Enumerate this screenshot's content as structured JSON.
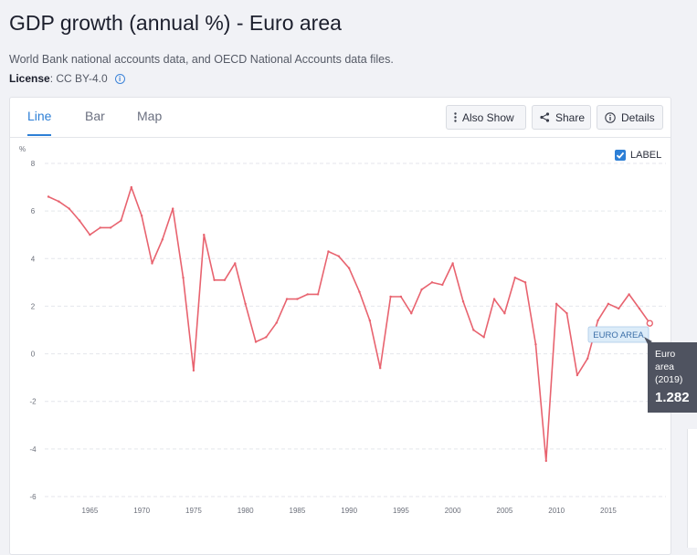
{
  "header": {
    "title": "GDP growth (annual %) - Euro area",
    "subtitle": "World Bank national accounts data, and OECD National Accounts data files.",
    "license_label": "License",
    "license_value": " : CC BY-4.0"
  },
  "tabs": [
    {
      "label": "Line",
      "active": true
    },
    {
      "label": "Bar",
      "active": false
    },
    {
      "label": "Map",
      "active": false
    }
  ],
  "toolbar": {
    "also_show": "Also Show",
    "share": "Share",
    "details": "Details",
    "label_toggle": "LABEL",
    "label_checked": true
  },
  "colors": {
    "line": "#e8636f",
    "accent": "#2d7fd6",
    "series_label_bg": "#dcecf9",
    "tooltip_bg": "#4f5360"
  },
  "chart_data": {
    "type": "line",
    "ylabel": "%",
    "ylim": [
      -6,
      8
    ],
    "yticks": [
      -6,
      -4,
      -2,
      0,
      2,
      4,
      6,
      8
    ],
    "xlim": [
      1960,
      2019
    ],
    "xticks": [
      1965,
      1970,
      1975,
      1980,
      1985,
      1990,
      1995,
      2000,
      2005,
      2010,
      2015
    ],
    "grid": "horizontal dashed",
    "series": [
      {
        "name": "EURO AREA",
        "x": [
          1961,
          1962,
          1963,
          1964,
          1965,
          1966,
          1967,
          1968,
          1969,
          1970,
          1971,
          1972,
          1973,
          1974,
          1975,
          1976,
          1977,
          1978,
          1979,
          1980,
          1981,
          1982,
          1983,
          1984,
          1985,
          1986,
          1987,
          1988,
          1989,
          1990,
          1991,
          1992,
          1993,
          1994,
          1995,
          1996,
          1997,
          1998,
          1999,
          2000,
          2001,
          2002,
          2003,
          2004,
          2005,
          2006,
          2007,
          2008,
          2009,
          2010,
          2011,
          2012,
          2013,
          2014,
          2015,
          2016,
          2017,
          2018,
          2019
        ],
        "values": [
          6.6,
          6.4,
          6.1,
          5.6,
          5.0,
          5.3,
          5.3,
          5.6,
          7.0,
          5.8,
          3.8,
          4.8,
          6.1,
          3.2,
          -0.7,
          5.0,
          3.1,
          3.1,
          3.8,
          2.1,
          0.5,
          0.7,
          1.3,
          2.3,
          2.3,
          2.5,
          2.5,
          4.3,
          4.1,
          3.6,
          2.6,
          1.4,
          -0.6,
          2.4,
          2.4,
          1.7,
          2.7,
          3.0,
          2.9,
          3.8,
          2.2,
          1.0,
          0.7,
          2.3,
          1.7,
          3.2,
          3.0,
          0.4,
          -4.5,
          2.1,
          1.7,
          -0.9,
          -0.2,
          1.4,
          2.1,
          1.9,
          2.5,
          1.9,
          1.282
        ]
      }
    ],
    "series_label": "EURO AREA",
    "tooltip": {
      "name_line1": "Euro",
      "name_line2": "area",
      "year": "(2019)",
      "value": "1.282"
    }
  }
}
